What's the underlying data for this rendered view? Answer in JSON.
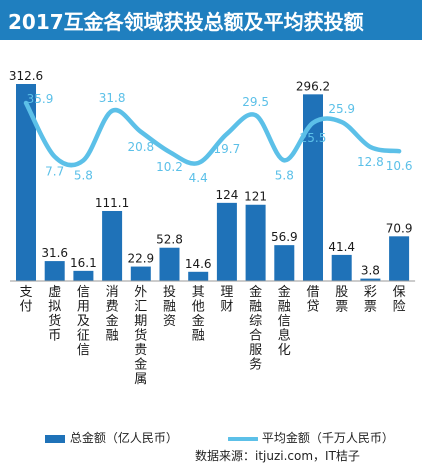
{
  "chart_data": {
    "type": "bar",
    "title": "2017互金各领域获投总额及平均获投额",
    "categories": [
      "支付",
      "虚拟货币",
      "信用及征信",
      "消费金融",
      "外汇期货贵金属",
      "投融资",
      "其他金融",
      "理财",
      "金融综合服务",
      "金融信息化",
      "借贷",
      "股票",
      "彩票",
      "保险"
    ],
    "series": [
      {
        "name": "总金额（亿人民币）",
        "type": "bar",
        "color": "#1f72b8",
        "values": [
          312.6,
          31.6,
          16.1,
          111.1,
          22.9,
          52.8,
          14.6,
          124,
          121,
          56.9,
          296.2,
          41.4,
          3.8,
          70.9
        ]
      },
      {
        "name": "平均金额（千万人民币）",
        "type": "line",
        "color": "#5cc0e8",
        "values": [
          35.9,
          7.7,
          5.8,
          31.8,
          20.8,
          10.2,
          4.4,
          19.7,
          29.5,
          5.8,
          25.5,
          25.9,
          12.8,
          10.6
        ]
      }
    ],
    "bar_value_labels": [
      "312.6",
      "31.6",
      "16.1",
      "111.1",
      "22.9",
      "52.8",
      "14.6",
      "124",
      "121",
      "56.9",
      "296.2",
      "41.4",
      "3.8",
      "70.9"
    ],
    "line_value_labels": [
      "35.9",
      "7.7",
      "5.8",
      "31.8",
      "20.8",
      "10.2",
      "4.4",
      "19.7",
      "29.5",
      "5.8",
      "25.5",
      "25.9",
      "12.8",
      "10.6"
    ],
    "bar_ylim": [
      0,
      312.6
    ],
    "line_ylim": [
      4.4,
      35.9
    ],
    "grid": false,
    "legend": "bottom"
  },
  "source": "数据来源：itjuzi.com，IT桔子"
}
